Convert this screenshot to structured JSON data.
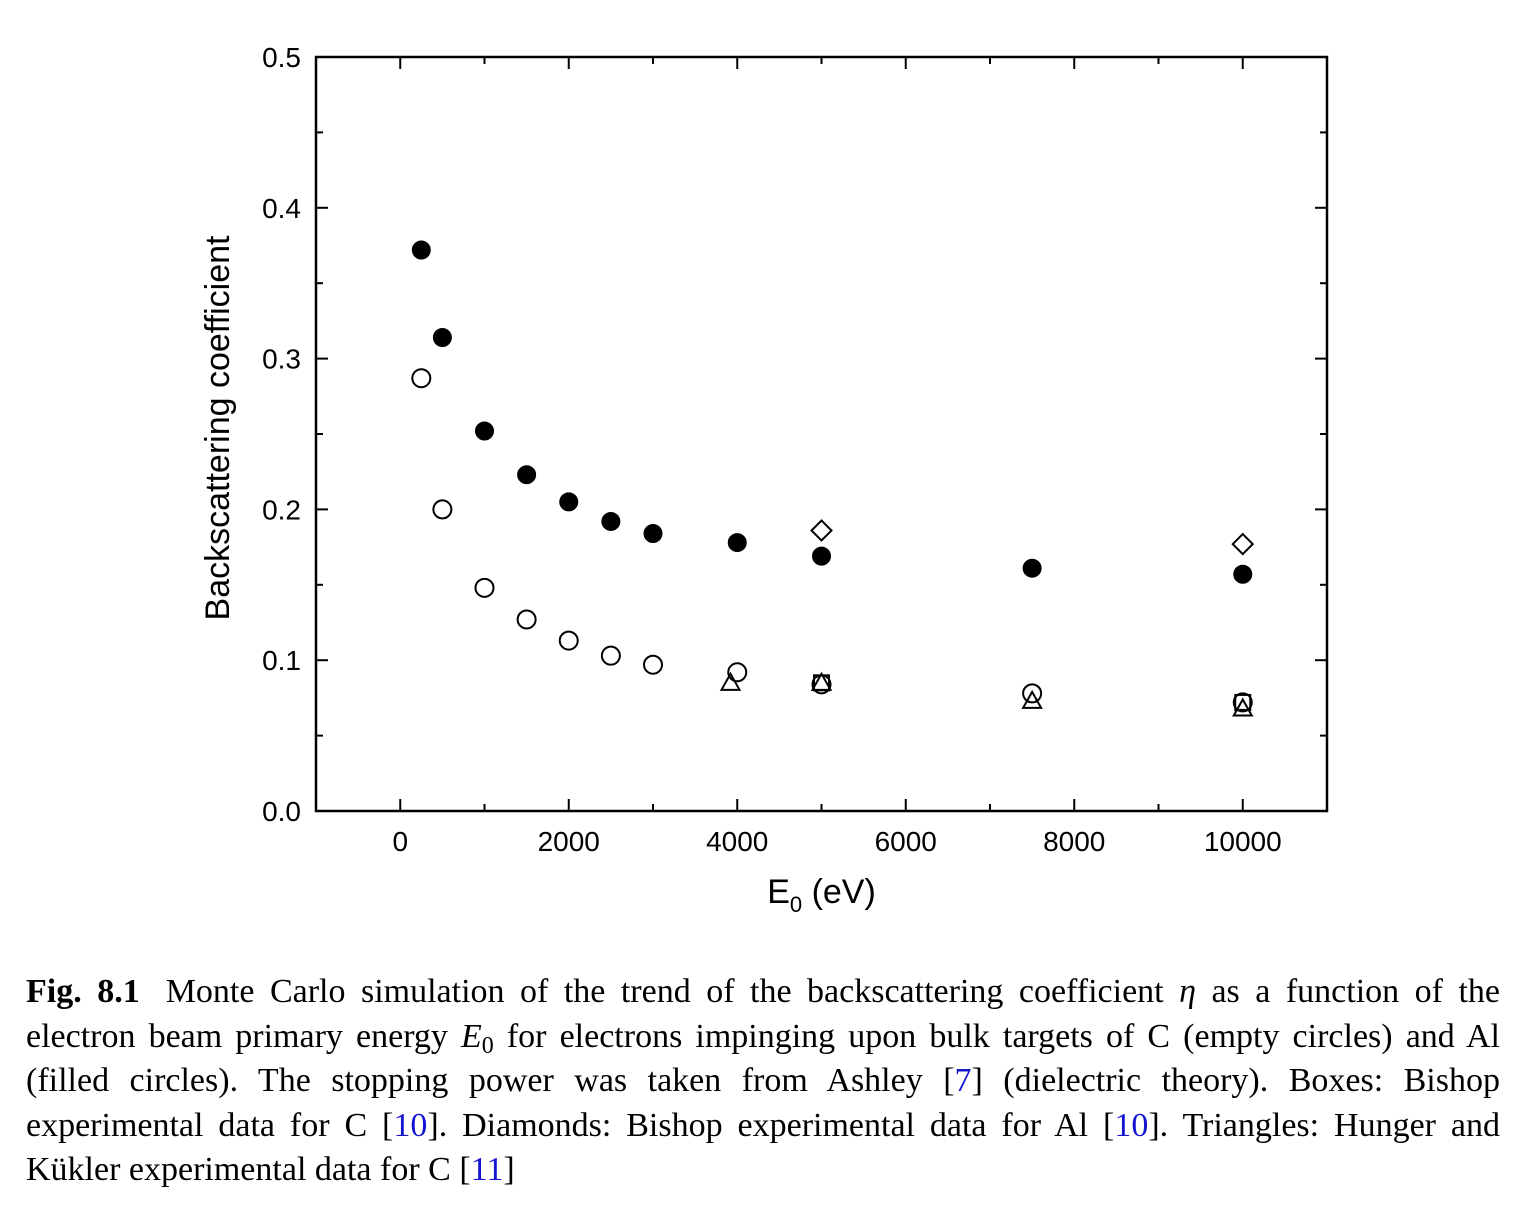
{
  "chart_data": {
    "type": "scatter",
    "xlabel": "E",
    "xlabel_subscript": "0",
    "xlabel_unit": " (eV)",
    "ylabel": "Backscattering coefficient",
    "xlim": [
      -1000,
      11000
    ],
    "ylim": [
      0.0,
      0.5
    ],
    "x_ticks": [
      0,
      2000,
      4000,
      6000,
      8000,
      10000
    ],
    "y_ticks": [
      0.0,
      0.1,
      0.2,
      0.3,
      0.4,
      0.5
    ],
    "x_tick_labels": [
      "0",
      "2000",
      "4000",
      "6000",
      "8000",
      "10000"
    ],
    "y_tick_labels": [
      "0.0",
      "0.1",
      "0.2",
      "0.3",
      "0.4",
      "0.5"
    ],
    "grid": false,
    "legend": "none",
    "series": [
      {
        "marker": "filled-circle",
        "points": [
          [
            250,
            0.372
          ],
          [
            500,
            0.314
          ],
          [
            1000,
            0.252
          ],
          [
            1500,
            0.223
          ],
          [
            2000,
            0.205
          ],
          [
            2500,
            0.192
          ],
          [
            3000,
            0.184
          ],
          [
            4000,
            0.178
          ],
          [
            5000,
            0.169
          ],
          [
            7500,
            0.161
          ],
          [
            10000,
            0.157
          ]
        ]
      },
      {
        "marker": "open-circle",
        "points": [
          [
            250,
            0.287
          ],
          [
            500,
            0.2
          ],
          [
            1000,
            0.148
          ],
          [
            1500,
            0.127
          ],
          [
            2000,
            0.113
          ],
          [
            2500,
            0.103
          ],
          [
            3000,
            0.097
          ],
          [
            4000,
            0.092
          ],
          [
            5000,
            0.084
          ],
          [
            7500,
            0.078
          ],
          [
            10000,
            0.072
          ]
        ]
      },
      {
        "marker": "open-square",
        "points": [
          [
            5000,
            0.085
          ],
          [
            10000,
            0.072
          ]
        ]
      },
      {
        "marker": "open-diamond",
        "points": [
          [
            5000,
            0.186
          ],
          [
            10000,
            0.177
          ]
        ]
      },
      {
        "marker": "open-triangle",
        "points": [
          [
            3920,
            0.085
          ],
          [
            5000,
            0.085
          ],
          [
            7500,
            0.073
          ],
          [
            10000,
            0.068
          ]
        ]
      }
    ]
  },
  "caption": {
    "label": "Fig. 8.1",
    "p1": "Monte Carlo simulation of the trend of the backscattering coefficient ",
    "eta": "η",
    "p2": " as a function of the electron beam primary energy ",
    "e_sym": "E",
    "e_sub": "0",
    "p3": " for electrons impinging upon bulk targets of C (empty circles) and Al (filled circles). The stopping power was taken from Ashley [",
    "ref1": "7",
    "p4": "] (dielectric theory). Boxes: Bishop experimental data for C [",
    "ref2": "10",
    "p5": "]. Diamonds: Bishop experimental data for Al [",
    "ref3": "10",
    "p6": "]. Triangles: Hunger and Kükler experimental data for C [",
    "ref4": "11",
    "p7": "]"
  }
}
